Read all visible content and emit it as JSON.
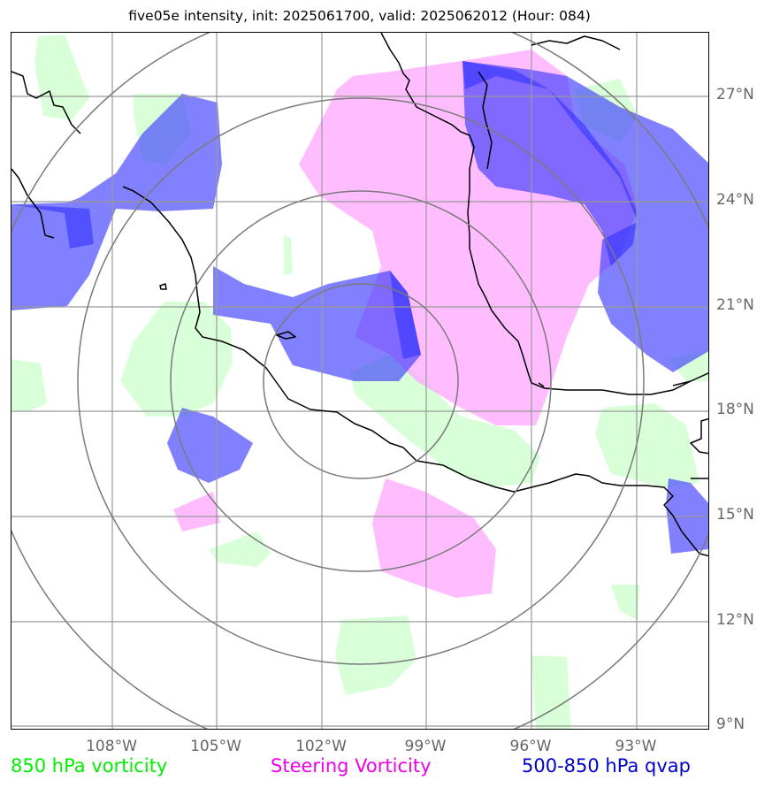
{
  "title": "five05e intensity, init: 2025061700, valid: 2025062012 (Hour: 084)",
  "lat_labels": [
    "27°N",
    "24°N",
    "21°N",
    "18°N",
    "15°N",
    "12°N",
    "9°N"
  ],
  "lon_labels": [
    "108°W",
    "105°W",
    "102°W",
    "99°W",
    "96°W",
    "93°W"
  ],
  "legend": [
    {
      "label": "850 hPa vorticity",
      "color": "#00ee00"
    },
    {
      "label": "Steering Vorticity",
      "color": "#ee00ee"
    },
    {
      "label": "500-850 hPa qvap",
      "color": "#0000cc"
    }
  ],
  "colors": {
    "vort850": "#ccffcc",
    "steering": "#ff99ff",
    "qvap": "#3333ff",
    "coast": "#000000",
    "grid": "#999999",
    "rings": "#7a7a7a"
  }
}
